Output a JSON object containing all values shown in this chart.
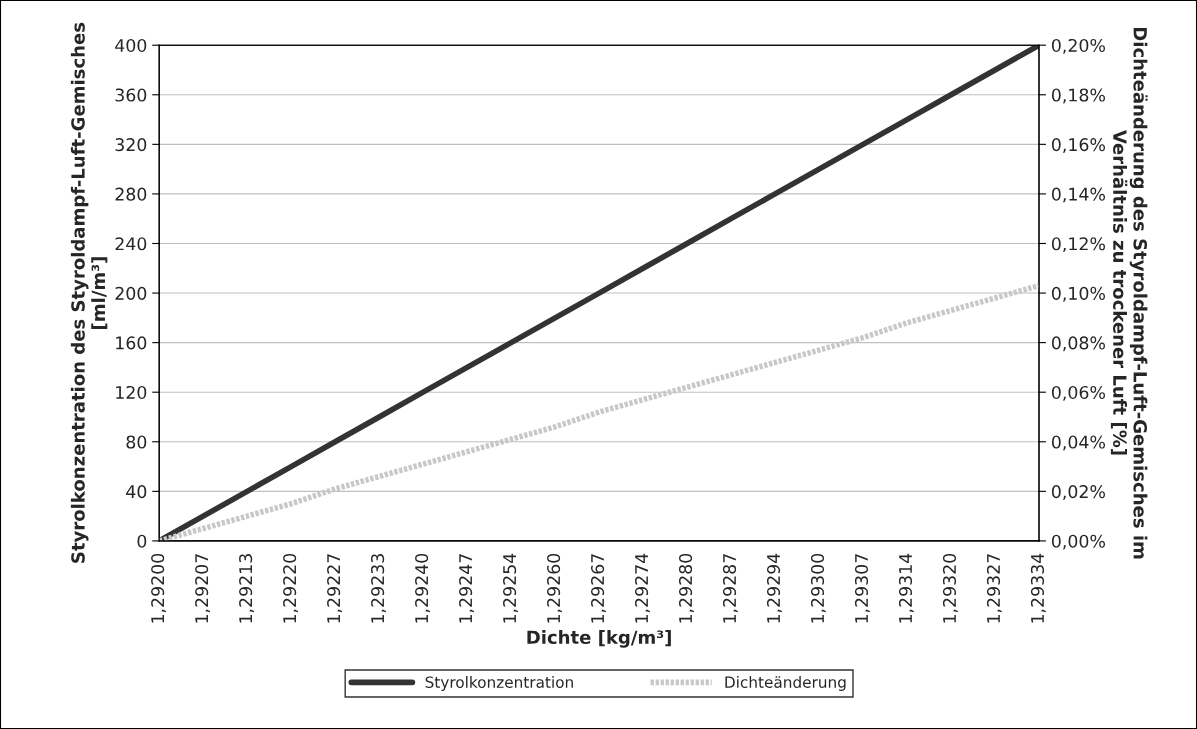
{
  "chart_data": {
    "type": "line",
    "xlabel": "Dichte [kg/m³]",
    "ylabel": "Styrolkonzentration des Styroldampf-Luft-Gemisches [ml/m³]",
    "y2label": "Dichteänderung des Styroldampf-Luft-Gemisches im Verhältnis zu trockener Luft [%]",
    "categories": [
      "1,29200",
      "1,29207",
      "1,29213",
      "1,29220",
      "1,29227",
      "1,29233",
      "1,29240",
      "1,29247",
      "1,29254",
      "1,29260",
      "1,29267",
      "1,29274",
      "1,29280",
      "1,29287",
      "1,29294",
      "1,29300",
      "1,29307",
      "1,29314",
      "1,29320",
      "1,29327",
      "1,29334"
    ],
    "series": [
      {
        "name": "Styrolkonzentration",
        "color": "#333333",
        "values": [
          0,
          20,
          40,
          60,
          80,
          100,
          120,
          140,
          160,
          180,
          200,
          220,
          240,
          260,
          280,
          300,
          320,
          340,
          360,
          380,
          400
        ],
        "line_style": "solid"
      },
      {
        "name": "Dichteänderung",
        "color": "#c8c8c8",
        "axis": "y2",
        "values": [
          0,
          0.005,
          0.01,
          0.015,
          0.021,
          0.026,
          0.031,
          0.036,
          0.041,
          0.046,
          0.052,
          0.057,
          0.062,
          0.067,
          0.072,
          0.077,
          0.082,
          0.088,
          0.093,
          0.098,
          0.103
        ],
        "line_style": "dotted"
      }
    ],
    "ylim": [
      0,
      400
    ],
    "yticks": [
      0,
      40,
      80,
      120,
      160,
      200,
      240,
      280,
      320,
      360,
      400
    ],
    "y2lim": [
      0,
      0.2
    ],
    "y2ticks": [
      {
        "value": 0,
        "label": "0,00%"
      },
      {
        "value": 0.02,
        "label": "0,02%"
      },
      {
        "value": 0.04,
        "label": "0,04%"
      },
      {
        "value": 0.06,
        "label": "0,06%"
      },
      {
        "value": 0.08,
        "label": "0,08%"
      },
      {
        "value": 0.1,
        "label": "0,10%"
      },
      {
        "value": 0.12,
        "label": "0,12%"
      },
      {
        "value": 0.14,
        "label": "0,14%"
      },
      {
        "value": 0.16,
        "label": "0,16%"
      },
      {
        "value": 0.18,
        "label": "0,18%"
      },
      {
        "value": 0.2,
        "label": "0,20%"
      }
    ],
    "grid": "y",
    "legend": "bottom",
    "marker": "none"
  }
}
